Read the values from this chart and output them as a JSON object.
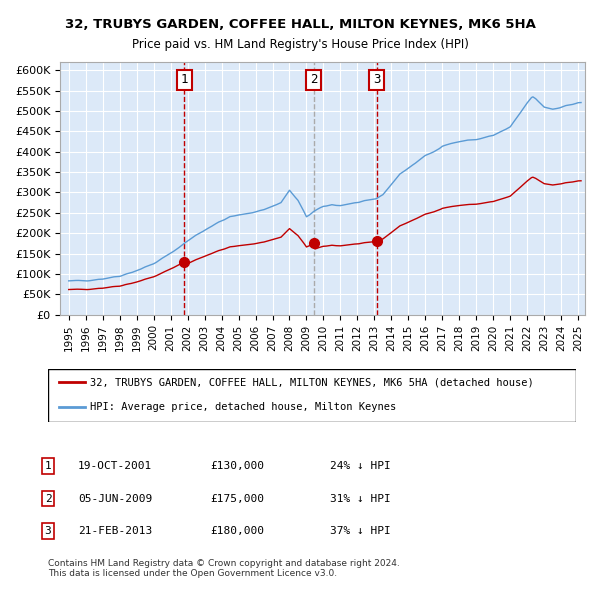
{
  "title1": "32, TRUBYS GARDEN, COFFEE HALL, MILTON KEYNES, MK6 5HA",
  "title2": "Price paid vs. HM Land Registry's House Price Index (HPI)",
  "legend1": "32, TRUBYS GARDEN, COFFEE HALL, MILTON KEYNES, MK6 5HA (detached house)",
  "legend2": "HPI: Average price, detached house, Milton Keynes",
  "sales": [
    {
      "num": 1,
      "date": "19-OCT-2001",
      "price": 130000,
      "pct": "24% ↓ HPI",
      "date_val": 2001.8
    },
    {
      "num": 2,
      "date": "05-JUN-2009",
      "price": 175000,
      "pct": "31% ↓ HPI",
      "date_val": 2009.42
    },
    {
      "num": 3,
      "date": "21-FEB-2013",
      "price": 180000,
      "pct": "37% ↓ HPI",
      "date_val": 2013.13
    }
  ],
  "ylim": [
    0,
    620000
  ],
  "yticks": [
    0,
    50000,
    100000,
    150000,
    200000,
    250000,
    300000,
    350000,
    400000,
    450000,
    500000,
    550000,
    600000
  ],
  "background_color": "#dce9f8",
  "grid_color": "#ffffff",
  "hpi_color": "#5b9bd5",
  "price_color": "#c00000",
  "footnote": "Contains HM Land Registry data © Crown copyright and database right 2024.\nThis data is licensed under the Open Government Licence v3.0."
}
